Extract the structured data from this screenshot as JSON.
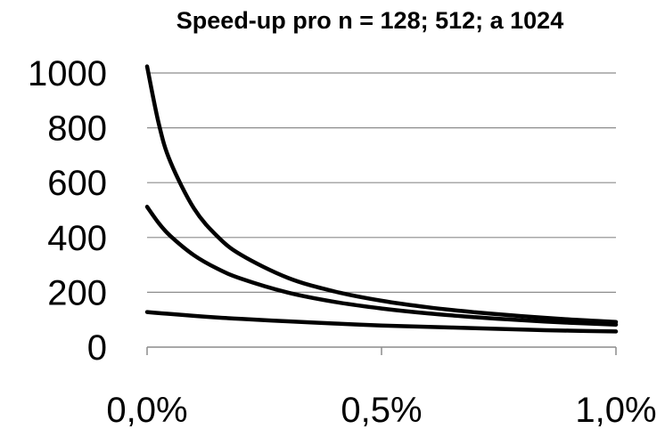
{
  "chart_data": {
    "type": "line",
    "title": "Speed-up pro n = 128; 512;  a 1024",
    "xlabel": "",
    "ylabel": "",
    "x_ticks": [
      "0,0%",
      "0,5%",
      "1,0%"
    ],
    "y_ticks": [
      "0",
      "200",
      "400",
      "600",
      "800",
      "1000"
    ],
    "xlim": [
      0,
      0.01
    ],
    "ylim": [
      0,
      1000
    ],
    "grid": true,
    "series": [
      {
        "x": [
          0,
          0.00025,
          0.0005,
          0.001,
          0.0015,
          0.002,
          0.003,
          0.004,
          0.005,
          0.006,
          0.007,
          0.008,
          0.009,
          0.01
        ],
        "values": [
          1024,
          814,
          675,
          506,
          404,
          337,
          253,
          203,
          169,
          145,
          127,
          113,
          101,
          92
        ]
      },
      {
        "x": [
          0,
          0.00025,
          0.0005,
          0.001,
          0.0015,
          0.002,
          0.003,
          0.004,
          0.005,
          0.006,
          0.007,
          0.008,
          0.009,
          0.01
        ],
        "values": [
          512,
          452,
          405,
          335,
          286,
          250,
          199,
          165,
          141,
          123,
          109,
          98,
          89,
          82
        ]
      },
      {
        "x": [
          0,
          0.00025,
          0.0005,
          0.001,
          0.0015,
          0.002,
          0.003,
          0.004,
          0.005,
          0.006,
          0.007,
          0.008,
          0.009,
          0.01
        ],
        "values": [
          128,
          124,
          121,
          114,
          108,
          103,
          94,
          86,
          79,
          74,
          69,
          64,
          60,
          57
        ]
      }
    ]
  }
}
